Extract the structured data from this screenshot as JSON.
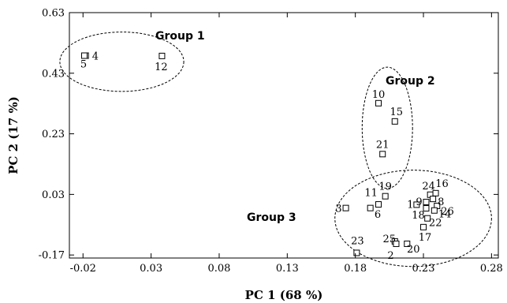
{
  "chart_data": {
    "type": "scatter",
    "xlabel": "PC 1 (68 %)",
    "ylabel": "PC 2 (17 %)",
    "xlim": [
      -0.03,
      0.285
    ],
    "ylim": [
      -0.18,
      0.63
    ],
    "xticks": [
      -0.02,
      0.03,
      0.08,
      0.13,
      0.18,
      0.23,
      0.28
    ],
    "xtick_labels": [
      "-0.02",
      "0.03",
      "0.08",
      "0.13",
      "0.18",
      "0.23",
      "0.28"
    ],
    "yticks": [
      -0.17,
      0.03,
      0.23,
      0.43,
      0.63
    ],
    "ytick_labels": [
      "-0.17",
      "0.03",
      "0.23",
      "0.43",
      "0.63"
    ],
    "grid": false,
    "marker": "open-square",
    "points": [
      {
        "label": "4",
        "x": -0.018,
        "y": 0.488
      },
      {
        "label": "5",
        "x": -0.019,
        "y": 0.488
      },
      {
        "label": "12",
        "x": 0.038,
        "y": 0.487
      },
      {
        "label": "10",
        "x": 0.197,
        "y": 0.331
      },
      {
        "label": "15",
        "x": 0.209,
        "y": 0.271
      },
      {
        "label": "21",
        "x": 0.2,
        "y": 0.163
      },
      {
        "label": "19",
        "x": 0.202,
        "y": 0.024
      },
      {
        "label": "11",
        "x": 0.191,
        "y": -0.015
      },
      {
        "label": "3",
        "x": 0.173,
        "y": -0.015
      },
      {
        "label": "6",
        "x": 0.197,
        "y": -0.003
      },
      {
        "label": "1",
        "x": 0.225,
        "y": -0.004
      },
      {
        "label": "9",
        "x": 0.232,
        "y": 0.005
      },
      {
        "label": "24",
        "x": 0.235,
        "y": 0.029
      },
      {
        "label": "16",
        "x": 0.239,
        "y": 0.034
      },
      {
        "label": "8",
        "x": 0.237,
        "y": 0.015
      },
      {
        "label": "26",
        "x": 0.24,
        "y": -0.008
      },
      {
        "label": "18",
        "x": 0.232,
        "y": -0.016
      },
      {
        "label": "14",
        "x": 0.238,
        "y": -0.023
      },
      {
        "label": "22",
        "x": 0.233,
        "y": -0.049
      },
      {
        "label": "17",
        "x": 0.23,
        "y": -0.078
      },
      {
        "label": "25",
        "x": 0.209,
        "y": -0.125
      },
      {
        "label": "2",
        "x": 0.21,
        "y": -0.133
      },
      {
        "label": "20",
        "x": 0.218,
        "y": -0.133
      },
      {
        "label": "23",
        "x": 0.181,
        "y": -0.163
      }
    ],
    "groups": [
      {
        "name": "Group 1",
        "cx": 0.0085,
        "cy": 0.468,
        "rx": 0.0455,
        "ry": 0.098
      },
      {
        "name": "Group 2",
        "cx": 0.2035,
        "cy": 0.25,
        "rx": 0.0185,
        "ry": 0.2
      },
      {
        "name": "Group 3",
        "cx": 0.2225,
        "cy": -0.049,
        "rx": 0.0575,
        "ry": 0.159
      }
    ]
  }
}
